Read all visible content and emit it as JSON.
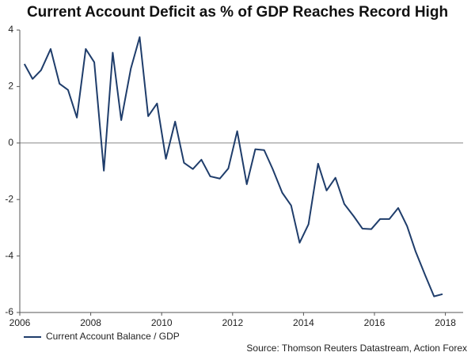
{
  "chart_data": {
    "type": "line",
    "title": "Current Account Deficit as % of GDP Reaches Record High",
    "source": "Source: Thomson Reuters Datastream, Action Forex",
    "legend": "bottom-left",
    "x": [
      2006.13,
      2006.36,
      2006.6,
      2006.87,
      2007.12,
      2007.36,
      2007.61,
      2007.86,
      2008.1,
      2008.37,
      2008.62,
      2008.86,
      2009.13,
      2009.38,
      2009.62,
      2009.87,
      2010.12,
      2010.38,
      2010.63,
      2010.88,
      2011.12,
      2011.37,
      2011.64,
      2011.88,
      2012.13,
      2012.4,
      2012.64,
      2012.89,
      2013.13,
      2013.4,
      2013.65,
      2013.89,
      2014.14,
      2014.41,
      2014.65,
      2014.9,
      2015.15,
      2015.42,
      2015.66,
      2015.91,
      2016.16,
      2016.42,
      2016.67,
      2016.92,
      2017.16,
      2017.43,
      2017.68,
      2017.92
    ],
    "series": [
      {
        "name": "Current Account Balance / GDP",
        "color": "#1f3d6b",
        "values": [
          2.8,
          2.27,
          2.58,
          3.33,
          2.1,
          1.88,
          0.9,
          3.33,
          2.86,
          -0.98,
          3.2,
          0.81,
          2.63,
          3.75,
          0.95,
          1.4,
          -0.56,
          0.76,
          -0.7,
          -0.92,
          -0.59,
          -1.18,
          -1.26,
          -0.9,
          0.42,
          -1.46,
          -0.22,
          -0.25,
          -0.92,
          -1.76,
          -2.21,
          -3.53,
          -2.88,
          -0.73,
          -1.68,
          -1.23,
          -2.16,
          -2.6,
          -3.03,
          -3.05,
          -2.69,
          -2.69,
          -2.3,
          -2.94,
          -3.84,
          -4.68,
          -5.43,
          -5.35
        ]
      }
    ],
    "xlim": [
      2006,
      2018.5
    ],
    "xticks": [
      2006,
      2008,
      2010,
      2012,
      2014,
      2016,
      2018
    ],
    "ylim": [
      -6,
      4
    ],
    "yticks": [
      -6,
      -4,
      -2,
      0,
      2,
      4
    ]
  }
}
